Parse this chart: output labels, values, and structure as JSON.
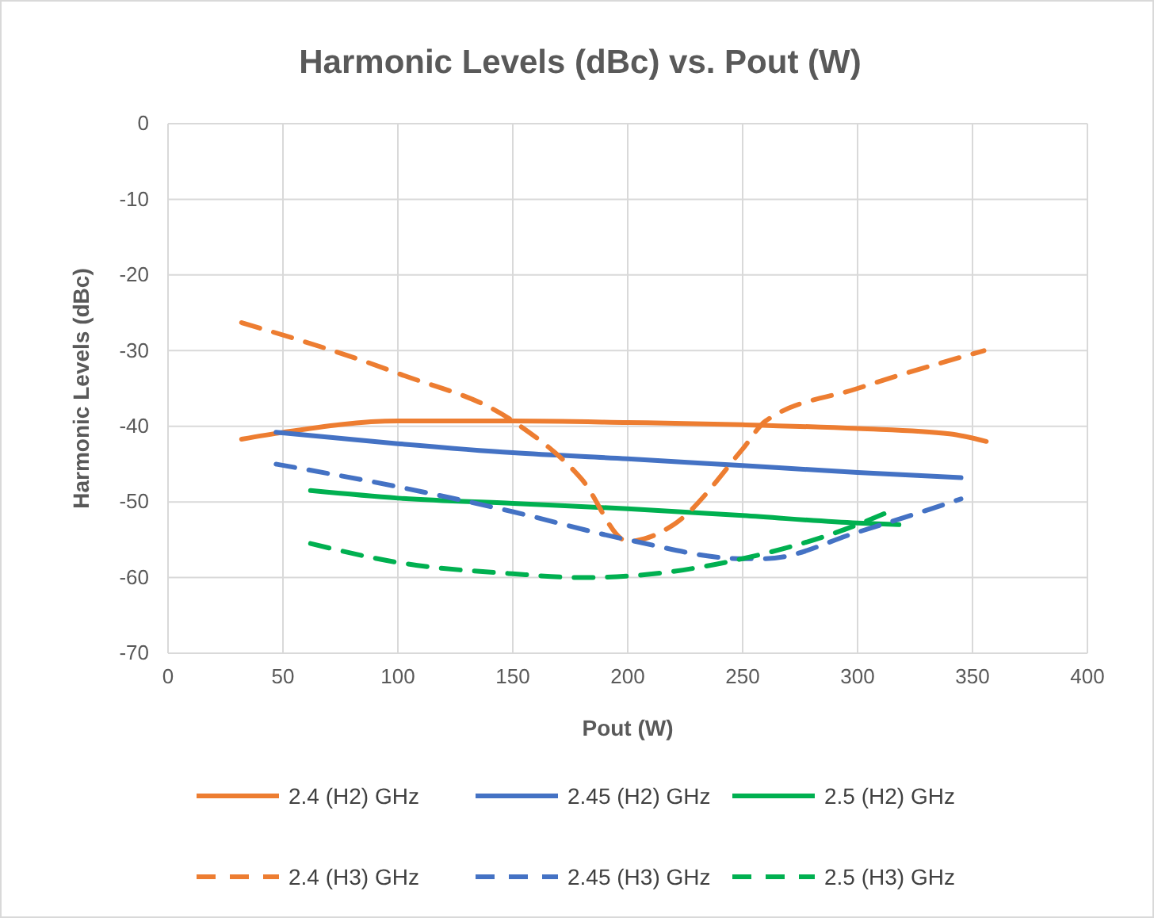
{
  "chart_data": {
    "type": "line",
    "title": "Harmonic Levels (dBc) vs. Pout (W)",
    "xlabel": "Pout (W)",
    "ylabel": "Harmonic Levels (dBc)",
    "xlim": [
      0,
      400
    ],
    "xticks": [
      0,
      50,
      100,
      150,
      200,
      250,
      300,
      350,
      400
    ],
    "ylim": [
      -70,
      0
    ],
    "yticks": [
      -70,
      -60,
      -50,
      -40,
      -30,
      -20,
      -10,
      0
    ],
    "grid": true,
    "legend": "bottom",
    "marker": "none",
    "series": [
      {
        "name": "2.4 (H2) GHz",
        "color": "#ed7d31",
        "line_style": "solid",
        "x": [
          32,
          50,
          100,
          150,
          200,
          250,
          300,
          340,
          356
        ],
        "values": [
          -41.7,
          -40.8,
          -39.3,
          -39.3,
          -39.5,
          -39.8,
          -40.3,
          -41,
          -42
        ]
      },
      {
        "name": "2.45 (H2) GHz",
        "color": "#4472c4",
        "line_style": "solid",
        "x": [
          47,
          100,
          150,
          200,
          250,
          300,
          345
        ],
        "values": [
          -40.8,
          -42.3,
          -43.5,
          -44.3,
          -45.2,
          -46.1,
          -46.8
        ]
      },
      {
        "name": "2.5 (H2) GHz",
        "color": "#00b050",
        "line_style": "solid",
        "x": [
          62,
          100,
          150,
          200,
          250,
          300,
          318
        ],
        "values": [
          -48.5,
          -49.5,
          -50.2,
          -50.9,
          -51.8,
          -52.8,
          -53
        ]
      },
      {
        "name": "2.4 (H3) GHz",
        "color": "#ed7d31",
        "line_style": "dashed",
        "x": [
          32,
          100,
          150,
          180,
          200,
          220,
          250,
          260,
          300,
          355
        ],
        "values": [
          -26.3,
          -33,
          -39.3,
          -47,
          -55.2,
          -53,
          -43,
          -39.3,
          -35,
          -30
        ]
      },
      {
        "name": "2.45 (H3) GHz",
        "color": "#4472c4",
        "line_style": "dashed",
        "x": [
          47,
          100,
          150,
          200,
          250,
          260,
          300,
          345
        ],
        "values": [
          -45,
          -48,
          -51.3,
          -55,
          -57.5,
          -57.5,
          -54,
          -49.6
        ]
      },
      {
        "name": "2.5 (H3) GHz",
        "color": "#00b050",
        "line_style": "dashed",
        "x": [
          62,
          100,
          150,
          180,
          200,
          250,
          300,
          312
        ],
        "values": [
          -55.5,
          -58,
          -59.5,
          -60,
          -59.8,
          -57.5,
          -53,
          -51.5
        ]
      }
    ]
  }
}
